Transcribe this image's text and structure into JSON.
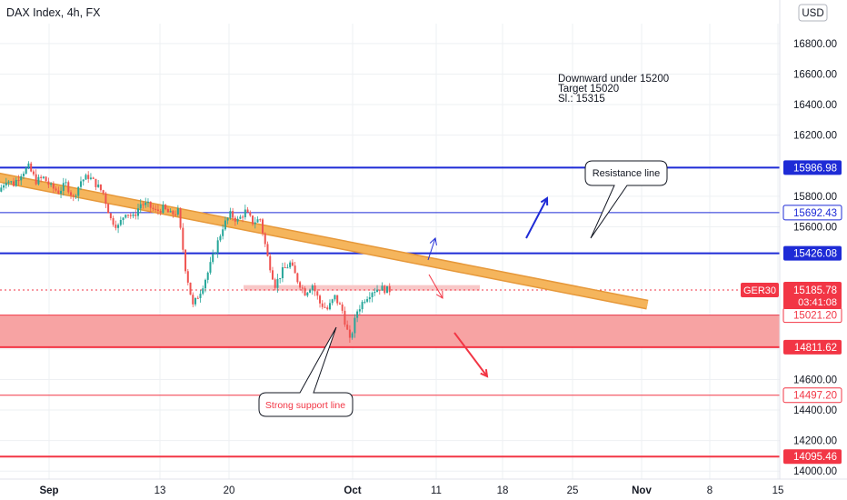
{
  "header": {
    "title": "DAX Index, 4h, FX",
    "currency_button": "USD"
  },
  "chart_data": {
    "type": "candlestick",
    "symbol": "DAX Index",
    "timeframe": "4h",
    "exchange": "FX",
    "currency": "USD",
    "x_tick_labels": [
      "Sep",
      "13",
      "20",
      "Oct",
      "11",
      "18",
      "25",
      "Nov",
      "8",
      "15"
    ],
    "y_tick_labels": [
      "16800.00",
      "16600.00",
      "16400.00",
      "16200.00",
      "15800.00",
      "15600.00",
      "14600.00",
      "14400.00",
      "14200.00",
      "14000.00"
    ],
    "y_ticks": [
      16800,
      16600,
      16400,
      16200,
      15800,
      15600,
      14600,
      14400,
      14200,
      14000
    ],
    "ylim": [
      13860,
      16930
    ],
    "grid": true,
    "colors": {
      "up": "#26a69a",
      "down": "#ef5350"
    },
    "price_path": [
      [
        0,
        15830
      ],
      [
        3,
        15910
      ],
      [
        6,
        15880
      ],
      [
        9,
        15950
      ],
      [
        12,
        15990
      ],
      [
        15,
        15900
      ],
      [
        18,
        15920
      ],
      [
        21,
        15860
      ],
      [
        24,
        15830
      ],
      [
        27,
        15880
      ],
      [
        30,
        15790
      ],
      [
        33,
        15900
      ],
      [
        36,
        15930
      ],
      [
        39,
        15880
      ],
      [
        42,
        15820
      ],
      [
        45,
        15650
      ],
      [
        48,
        15600
      ],
      [
        51,
        15700
      ],
      [
        54,
        15660
      ],
      [
        57,
        15750
      ],
      [
        60,
        15740
      ],
      [
        63,
        15700
      ],
      [
        66,
        15720
      ],
      [
        69,
        15680
      ],
      [
        72,
        15700
      ],
      [
        75,
        15330
      ],
      [
        78,
        15080
      ],
      [
        81,
        15180
      ],
      [
        84,
        15300
      ],
      [
        87,
        15450
      ],
      [
        90,
        15600
      ],
      [
        93,
        15680
      ],
      [
        96,
        15640
      ],
      [
        99,
        15700
      ],
      [
        102,
        15630
      ],
      [
        105,
        15650
      ],
      [
        108,
        15400
      ],
      [
        111,
        15220
      ],
      [
        114,
        15310
      ],
      [
        117,
        15360
      ],
      [
        120,
        15250
      ],
      [
        123,
        15170
      ],
      [
        126,
        15220
      ],
      [
        129,
        15100
      ],
      [
        132,
        15060
      ],
      [
        135,
        15140
      ],
      [
        138,
        15050
      ],
      [
        141,
        14850
      ],
      [
        144,
        15050
      ],
      [
        147,
        15130
      ],
      [
        150,
        15180
      ],
      [
        153,
        15200
      ],
      [
        156,
        15186
      ]
    ],
    "price_levels": [
      {
        "value": 15986.98,
        "label": "15986.98",
        "color": "#1e2bd6",
        "thick": true
      },
      {
        "value": 15692.43,
        "label": "15692.43",
        "color": "#1e2bd6",
        "thick": false
      },
      {
        "value": 15426.08,
        "label": "15426.08",
        "color": "#1e2bd6",
        "thick": true
      },
      {
        "value": 15021.2,
        "label": "15021.20",
        "color": "#f23645",
        "thick": false
      },
      {
        "value": 14811.62,
        "label": "14811.62",
        "color": "#f23645",
        "thick": true
      },
      {
        "value": 14497.2,
        "label": "14497.20",
        "color": "#f23645",
        "thick": false
      },
      {
        "value": 14095.46,
        "label": "14095.46",
        "color": "#f23645",
        "thick": true
      }
    ],
    "current_price": {
      "value": 15185.78,
      "label": "15185.78",
      "countdown": "03:41:08",
      "ticker": "GER30",
      "color": "#f23645"
    },
    "support_zone": {
      "top": 15021.2,
      "bottom": 14811.62
    },
    "resistance_trendline": {
      "from": [
        -6,
        15940
      ],
      "to": [
        260,
        15090
      ]
    },
    "annotations": {
      "plan": [
        "Downward under 15200",
        "Target 15020",
        "Sl.: 15315"
      ],
      "resistance_callout": "Resistance line",
      "support_callout": "Strong support line"
    }
  }
}
